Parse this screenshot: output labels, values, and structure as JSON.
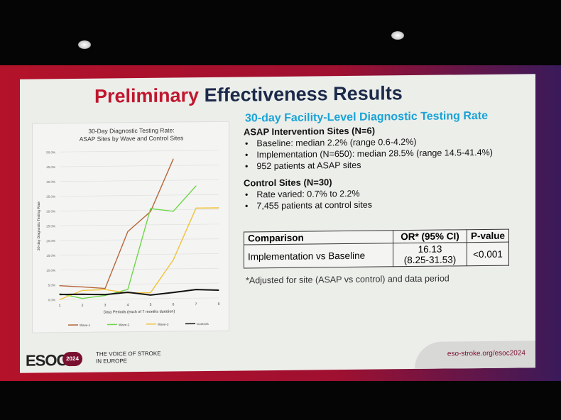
{
  "slide": {
    "title_red": "Preliminary",
    "title_rest": "Effectiveness Results",
    "section_title": "30-day Facility-Level Diagnostic Testing Rate",
    "asap_heading": "ASAP Intervention Sites (N=6)",
    "asap_bullets": [
      "Baseline: median 2.2% (range 0.6-4.2%)",
      "Implementation (N=650): median 28.5% (range 14.5-41.4%)",
      "952 patients at ASAP sites"
    ],
    "control_heading": "Control Sites (N=30)",
    "control_bullets": [
      "Rate varied: 0.7% to 2.2%",
      "7,455 patients at control sites"
    ],
    "table": {
      "headers": [
        "Comparison",
        "OR* (95% CI)",
        "P-value"
      ],
      "row": [
        "Implementation vs Baseline",
        "16.13",
        "(8.25-31.53)",
        "<0.001"
      ]
    },
    "footnote": "*Adjusted for site (ASAP vs control) and data period",
    "footer": {
      "logo": "ESOC",
      "year": "2024",
      "tagline1": "THE VOICE OF STROKE",
      "tagline2": "IN EUROPE",
      "url": "eso-stroke.org/esoc2024"
    }
  },
  "chart_data": {
    "type": "line",
    "title": "30-Day Diagnostic Testing Rate:",
    "subtitle": "ASAP Sites by Wave and Control Sites",
    "xlabel": "Data Periods (each of 7 months duration)",
    "ylabel": "30-day Diagnostic Testing Rate",
    "x": [
      1,
      2,
      3,
      4,
      5,
      6,
      7,
      8
    ],
    "ylim": [
      0,
      50
    ],
    "yticks": [
      "0.0%",
      "5.0%",
      "10.0%",
      "15.0%",
      "20.0%",
      "25.0%",
      "30.0%",
      "35.0%",
      "40.0%",
      "45.0%",
      "50.0%"
    ],
    "grid": true,
    "legend": "bottom",
    "series": [
      {
        "name": "Wave-1",
        "color": "#b5653a",
        "values": [
          4.7,
          4.2,
          3.6,
          22.8,
          29.5,
          47.2,
          null,
          null
        ]
      },
      {
        "name": "Wave-2",
        "color": "#6fd64a",
        "values": [
          2.0,
          0.3,
          1.2,
          3.2,
          30.5,
          29.5,
          38.0,
          null
        ]
      },
      {
        "name": "Wave-3",
        "color": "#f0c23a",
        "values": [
          0.0,
          3.0,
          3.2,
          2.0,
          2.0,
          13.0,
          30.5,
          30.5
        ]
      },
      {
        "name": "Controls",
        "color": "#111111",
        "values": [
          1.7,
          1.7,
          1.5,
          2.2,
          1.2,
          2.0,
          2.9,
          2.6
        ]
      }
    ]
  }
}
